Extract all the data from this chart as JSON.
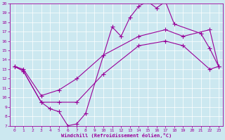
{
  "xlabel": "Windchill (Refroidissement éolien,°C)",
  "ylabel": "",
  "xlim": [
    -0.5,
    23.5
  ],
  "ylim": [
    7,
    20
  ],
  "xticks": [
    0,
    1,
    2,
    3,
    4,
    5,
    6,
    7,
    8,
    9,
    10,
    11,
    12,
    13,
    14,
    15,
    16,
    17,
    18,
    19,
    20,
    21,
    22,
    23
  ],
  "yticks": [
    7,
    8,
    9,
    10,
    11,
    12,
    13,
    14,
    15,
    16,
    17,
    18,
    19,
    20
  ],
  "color": "#990099",
  "bg_color": "#cce8f0",
  "curve1_x": [
    0,
    1,
    3,
    4,
    5,
    6,
    7,
    8,
    11,
    12,
    13,
    14,
    15,
    16,
    17,
    18,
    21,
    22,
    23
  ],
  "curve1_y": [
    13.3,
    12.8,
    9.5,
    8.8,
    8.5,
    7.0,
    7.2,
    8.3,
    17.5,
    16.5,
    18.5,
    19.7,
    20.2,
    19.5,
    20.2,
    17.8,
    16.8,
    15.2,
    13.3
  ],
  "curve2_x": [
    0,
    1,
    3,
    5,
    7,
    10,
    14,
    17,
    19,
    22,
    23
  ],
  "curve2_y": [
    13.3,
    13.0,
    10.2,
    10.8,
    12.0,
    14.5,
    16.5,
    17.2,
    16.5,
    17.2,
    13.3
  ],
  "curve3_x": [
    0,
    1,
    3,
    5,
    7,
    10,
    14,
    17,
    19,
    22,
    23
  ],
  "curve3_y": [
    13.3,
    12.8,
    9.5,
    9.5,
    9.5,
    12.5,
    15.5,
    16.0,
    15.5,
    13.0,
    13.3
  ],
  "marker": "+",
  "markersize": 4,
  "linewidth": 0.8
}
